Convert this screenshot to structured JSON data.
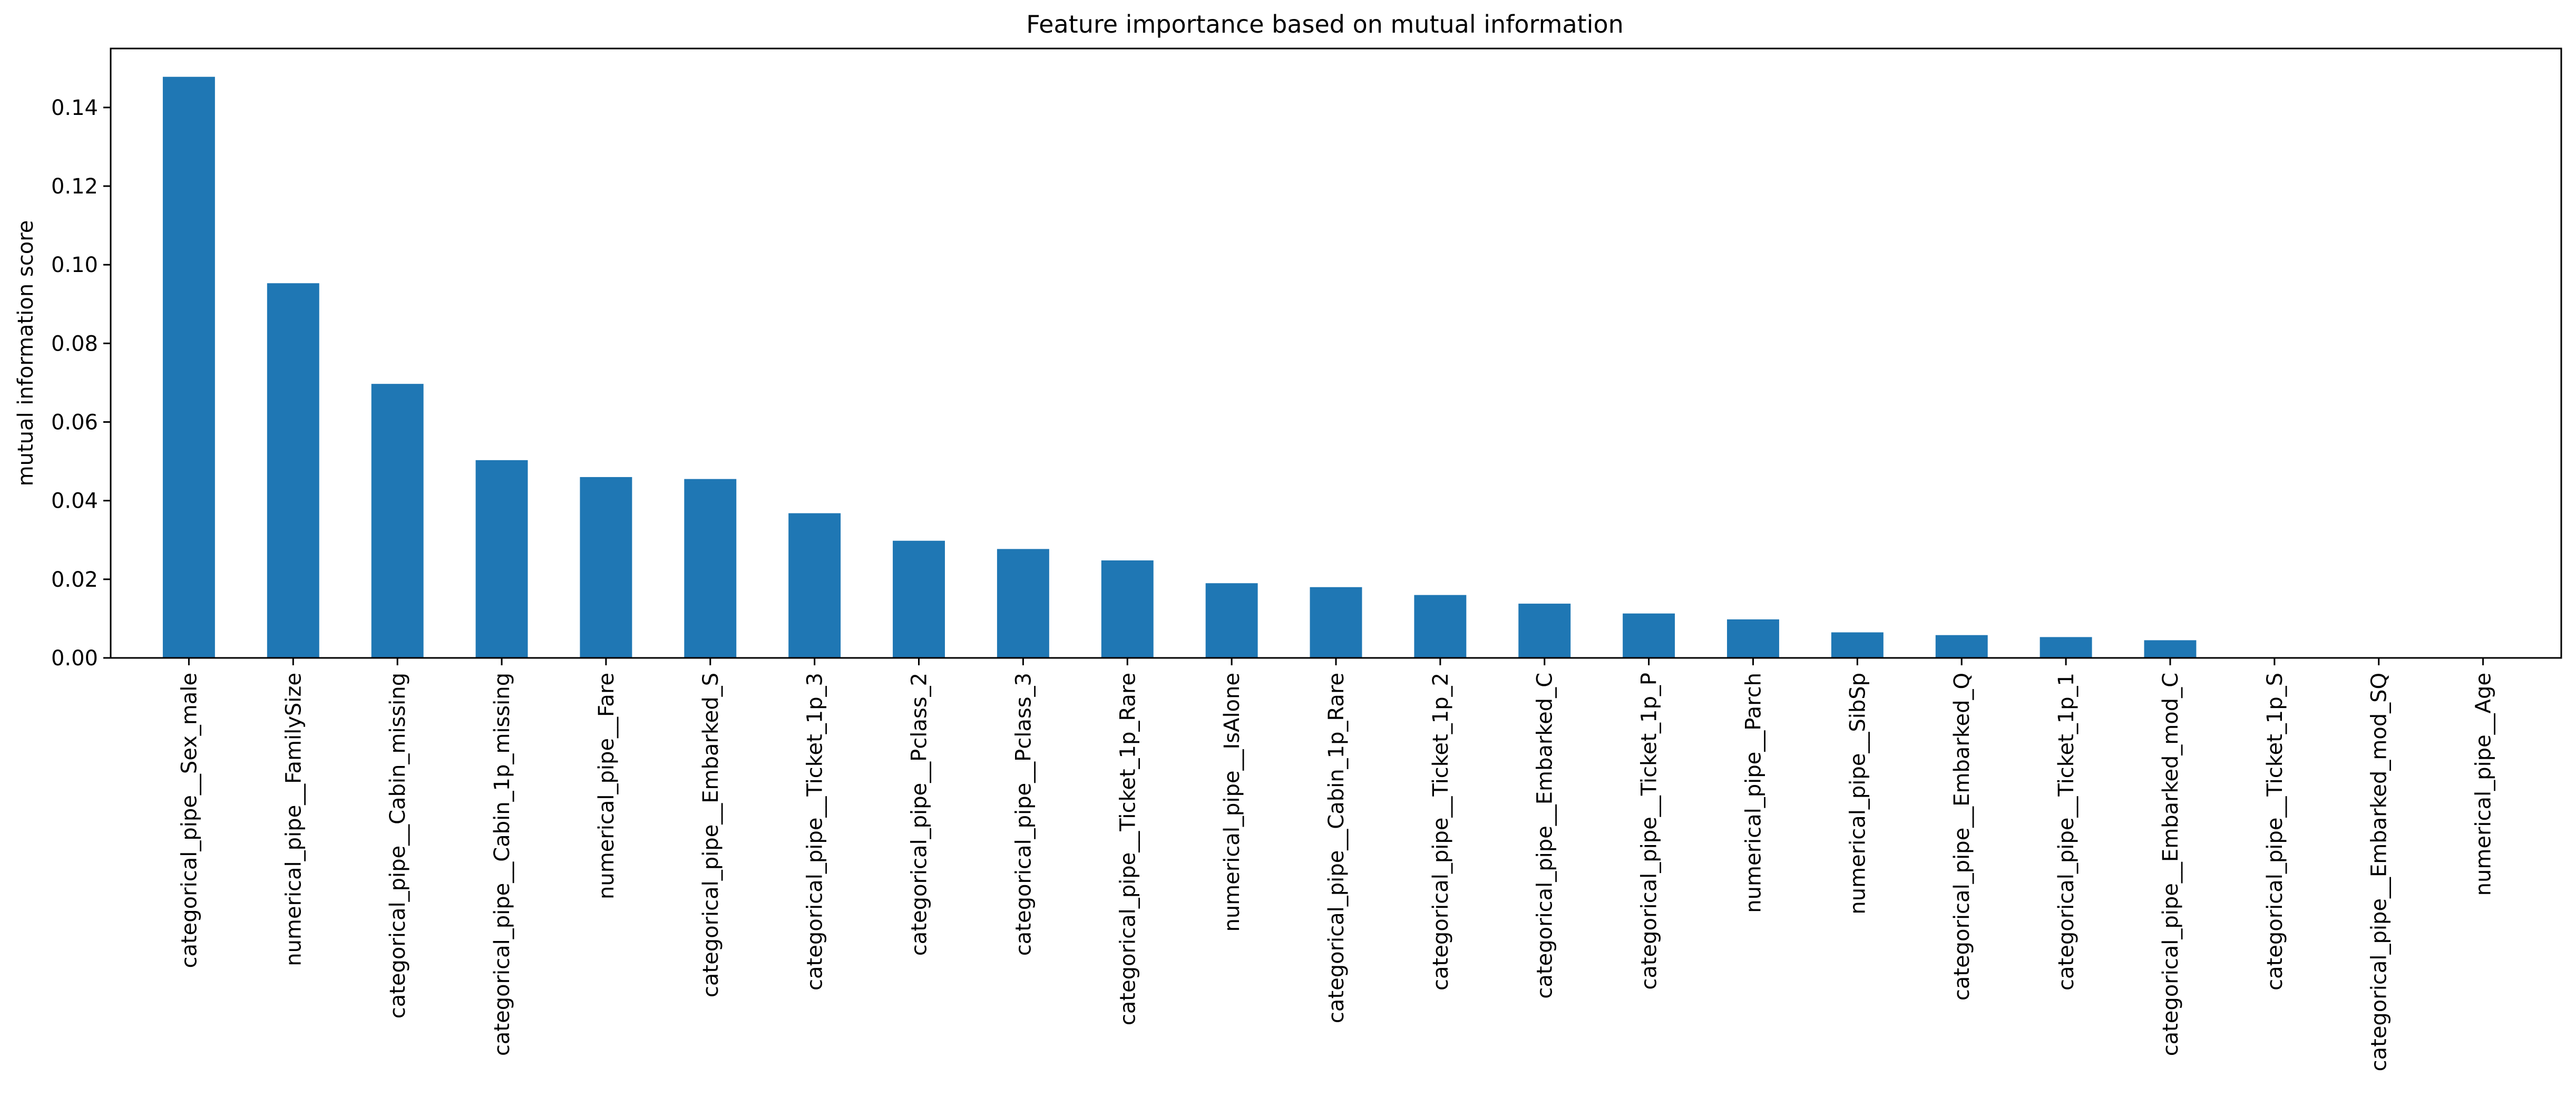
{
  "chart_data": {
    "type": "bar",
    "title": "Feature importance based on mutual information",
    "xlabel": "",
    "ylabel": "mutual information score",
    "ylim": [
      0,
      0.155
    ],
    "yticks": [
      0.0,
      0.02,
      0.04,
      0.06,
      0.08,
      0.1,
      0.12,
      0.14
    ],
    "ytick_labels": [
      "0.00",
      "0.02",
      "0.04",
      "0.06",
      "0.08",
      "0.10",
      "0.12",
      "0.14"
    ],
    "grid": false,
    "legend": "none",
    "bar_color": "#1f77b4",
    "categories": [
      "categorical_pipe__Sex_male",
      "numerical_pipe__FamilySize",
      "categorical_pipe__Cabin_missing",
      "categorical_pipe__Cabin_1p_missing",
      "numerical_pipe__Fare",
      "categorical_pipe__Embarked_S",
      "categorical_pipe__Ticket_1p_3",
      "categorical_pipe__Pclass_2",
      "categorical_pipe__Pclass_3",
      "categorical_pipe__Ticket_1p_Rare",
      "numerical_pipe__IsAlone",
      "categorical_pipe__Cabin_1p_Rare",
      "categorical_pipe__Ticket_1p_2",
      "categorical_pipe__Embarked_C",
      "categorical_pipe__Ticket_1p_P",
      "numerical_pipe__Parch",
      "numerical_pipe__SibSp",
      "categorical_pipe__Embarked_Q",
      "categorical_pipe__Ticket_1p_1",
      "categorical_pipe__Embarked_mod_C",
      "categorical_pipe__Ticket_1p_S",
      "categorical_pipe__Embarked_mod_SQ",
      "numerical_pipe__Age"
    ],
    "values": [
      0.1478,
      0.0953,
      0.0697,
      0.0503,
      0.046,
      0.0455,
      0.0368,
      0.0298,
      0.0277,
      0.0248,
      0.019,
      0.018,
      0.016,
      0.0138,
      0.0113,
      0.0098,
      0.0065,
      0.0058,
      0.0053,
      0.0045,
      0.0,
      0.0,
      0.0
    ]
  }
}
